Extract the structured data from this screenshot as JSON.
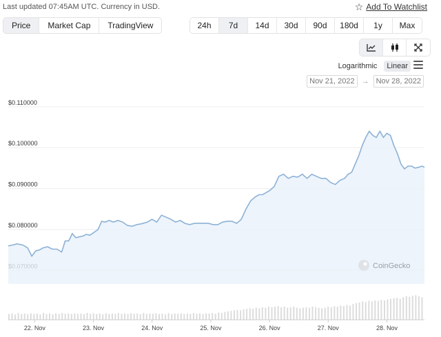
{
  "header": {
    "last_updated": "Last updated 07:45AM UTC. Currency in USD.",
    "watchlist_label": "Add To Watchlist"
  },
  "chart_types": [
    {
      "label": "Price",
      "active": true
    },
    {
      "label": "Market Cap",
      "active": false
    },
    {
      "label": "TradingView",
      "active": false
    }
  ],
  "ranges": [
    {
      "label": "24h",
      "active": false
    },
    {
      "label": "7d",
      "active": true
    },
    {
      "label": "14d",
      "active": false
    },
    {
      "label": "30d",
      "active": false
    },
    {
      "label": "90d",
      "active": false
    },
    {
      "label": "180d",
      "active": false
    },
    {
      "label": "1y",
      "active": false
    },
    {
      "label": "Max",
      "active": false
    }
  ],
  "chart_modes": [
    {
      "icon": "line-chart-icon",
      "active": true
    },
    {
      "icon": "candlestick-icon",
      "active": false
    },
    {
      "icon": "expand-icon",
      "active": false
    }
  ],
  "scale": {
    "logarithmic_label": "Logarithmic",
    "linear_label": "Linear",
    "active": "Linear"
  },
  "date_range": {
    "from": "Nov 21, 2022",
    "to": "Nov 28, 2022"
  },
  "watermark": "CoinGecko",
  "chart_data": {
    "type": "area",
    "title": "",
    "xlabel": "",
    "ylabel": "",
    "yticks": [
      "$0.070000",
      "$0.080000",
      "$0.090000",
      "$0.100000",
      "$0.110000"
    ],
    "ytick_values": [
      0.07,
      0.08,
      0.09,
      0.1,
      0.11
    ],
    "ylim": [
      0.0667,
      0.1125
    ],
    "x_tick_labels": [
      "22. Nov",
      "23. Nov",
      "24. Nov",
      "25. Nov",
      "26. Nov",
      "27. Nov",
      "28. Nov"
    ],
    "xlim": [
      21.55,
      28.64
    ],
    "grid": "horizontal",
    "line_color": "#8db1d6",
    "fill_color": "#e9f1fa",
    "volume_color": "#dcdcdc",
    "series": [
      {
        "x": [
          21.55,
          21.62,
          21.7,
          21.8,
          21.88,
          21.95,
          22.02,
          22.08,
          22.14,
          22.22,
          22.3,
          22.38,
          22.46,
          22.52,
          22.58,
          22.64,
          22.7,
          22.76,
          22.82,
          22.88,
          22.94,
          23.0,
          23.08,
          23.14,
          23.2,
          23.27,
          23.34,
          23.42,
          23.5,
          23.58,
          23.66,
          23.74,
          23.82,
          23.92,
          24.0,
          24.08,
          24.16,
          24.24,
          24.32,
          24.4,
          24.48,
          24.56,
          24.64,
          24.72,
          24.8,
          24.88,
          24.96,
          25.04,
          25.12,
          25.2,
          25.28,
          25.36,
          25.44,
          25.52,
          25.6,
          25.68,
          25.76,
          25.82,
          25.88,
          25.94,
          26.0,
          26.08,
          26.16,
          26.24,
          26.32,
          26.4,
          26.48,
          26.56,
          26.64,
          26.72,
          26.8,
          26.88,
          26.96,
          27.04,
          27.12,
          27.2,
          27.28,
          27.34,
          27.4,
          27.46,
          27.52,
          27.58,
          27.64,
          27.7,
          27.76,
          27.82,
          27.88,
          27.94,
          28.0,
          28.06,
          28.12,
          28.18,
          28.24,
          28.3,
          28.36,
          28.42,
          28.48,
          28.54,
          28.6,
          28.64
        ],
        "y": [
          0.076,
          0.0762,
          0.0765,
          0.0762,
          0.0755,
          0.0735,
          0.0748,
          0.075,
          0.0755,
          0.0758,
          0.0752,
          0.0752,
          0.0745,
          0.0772,
          0.0772,
          0.079,
          0.078,
          0.0782,
          0.0784,
          0.0788,
          0.0786,
          0.0792,
          0.08,
          0.082,
          0.0818,
          0.0822,
          0.0818,
          0.0822,
          0.0818,
          0.081,
          0.0808,
          0.0812,
          0.0814,
          0.0818,
          0.0825,
          0.0818,
          0.0835,
          0.083,
          0.0825,
          0.0818,
          0.0822,
          0.0815,
          0.0812,
          0.0815,
          0.0815,
          0.0815,
          0.0815,
          0.0812,
          0.0812,
          0.0818,
          0.082,
          0.082,
          0.0815,
          0.0825,
          0.085,
          0.087,
          0.088,
          0.0885,
          0.0885,
          0.089,
          0.0895,
          0.0905,
          0.093,
          0.0935,
          0.0925,
          0.093,
          0.0928,
          0.0935,
          0.0925,
          0.0935,
          0.093,
          0.0925,
          0.0925,
          0.0915,
          0.091,
          0.092,
          0.0925,
          0.0935,
          0.094,
          0.096,
          0.098,
          0.1005,
          0.1025,
          0.104,
          0.103,
          0.1025,
          0.104,
          0.1025,
          0.1035,
          0.103,
          0.1005,
          0.0985,
          0.096,
          0.0948,
          0.0955,
          0.0955,
          0.095,
          0.0952,
          0.0955,
          0.0952
        ]
      }
    ],
    "volume": [
      0.22,
      0.24,
      0.2,
      0.26,
      0.22,
      0.24,
      0.21,
      0.25,
      0.22,
      0.24,
      0.2,
      0.26,
      0.22,
      0.24,
      0.21,
      0.25,
      0.22,
      0.26,
      0.23,
      0.24,
      0.22,
      0.25,
      0.23,
      0.24,
      0.22,
      0.26,
      0.23,
      0.25,
      0.22,
      0.24,
      0.21,
      0.25,
      0.22,
      0.24,
      0.22,
      0.26,
      0.23,
      0.24,
      0.22,
      0.25,
      0.23,
      0.24,
      0.21,
      0.26,
      0.22,
      0.24,
      0.23,
      0.25,
      0.22,
      0.24,
      0.21,
      0.26,
      0.22,
      0.24,
      0.23,
      0.25,
      0.22,
      0.24,
      0.22,
      0.26,
      0.23,
      0.24,
      0.22,
      0.25,
      0.24,
      0.26,
      0.23,
      0.28,
      0.26,
      0.3,
      0.32,
      0.34,
      0.36,
      0.38,
      0.36,
      0.4,
      0.42,
      0.44,
      0.42,
      0.46,
      0.44,
      0.48,
      0.46,
      0.5,
      0.48,
      0.5,
      0.52,
      0.48,
      0.5,
      0.46,
      0.48,
      0.5,
      0.46,
      0.44,
      0.46,
      0.48,
      0.46,
      0.5,
      0.48,
      0.46,
      0.44,
      0.46,
      0.5,
      0.48,
      0.52,
      0.5,
      0.54,
      0.52,
      0.56,
      0.54,
      0.6,
      0.64,
      0.66,
      0.7,
      0.68,
      0.72,
      0.7,
      0.74,
      0.72,
      0.76,
      0.74,
      0.78,
      0.8,
      0.82,
      0.84,
      0.8,
      0.86,
      0.9,
      0.88,
      0.92,
      0.94,
      0.9,
      0.86
    ]
  }
}
